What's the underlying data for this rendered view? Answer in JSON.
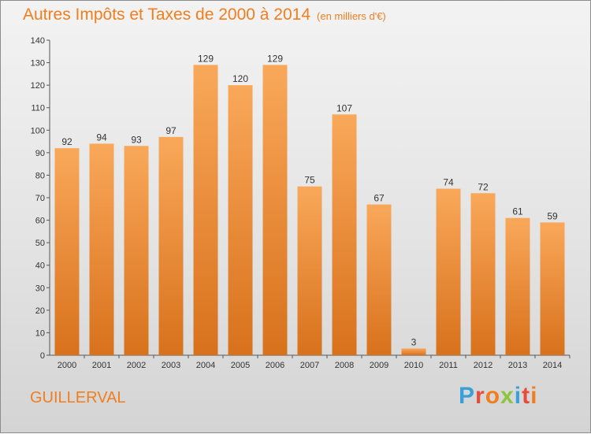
{
  "header": {
    "title": "Autres Impôts et Taxes de 2000 à 2014",
    "unit": "(en milliers d'€)"
  },
  "footer": {
    "commune": "GUILLERVAL",
    "logo_text": "Proxiti",
    "logo_colors": [
      "#3aa0d8",
      "#e84b3c",
      "#f07e1e",
      "#8cc63f",
      "#3aa0d8",
      "#e84b3c",
      "#f07e1e"
    ]
  },
  "colors": {
    "title": "#f07e1e",
    "bar_top": "#f9a85a",
    "bar_bottom": "#d8711c"
  },
  "chart_data": {
    "type": "bar",
    "title": "Autres Impôts et Taxes de 2000 à 2014",
    "subtitle": "(en milliers d'€)",
    "categories": [
      "2000",
      "2001",
      "2002",
      "2003",
      "2004",
      "2005",
      "2006",
      "2007",
      "2008",
      "2009",
      "2010",
      "2011",
      "2012",
      "2013",
      "2014"
    ],
    "values": [
      92,
      94,
      93,
      97,
      129,
      120,
      129,
      75,
      107,
      67,
      3,
      74,
      72,
      61,
      59
    ],
    "ylim": [
      0,
      140
    ],
    "yticks": [
      0,
      10,
      20,
      30,
      40,
      50,
      60,
      70,
      80,
      90,
      100,
      110,
      120,
      130,
      140
    ],
    "grid": false,
    "legend": "none"
  }
}
